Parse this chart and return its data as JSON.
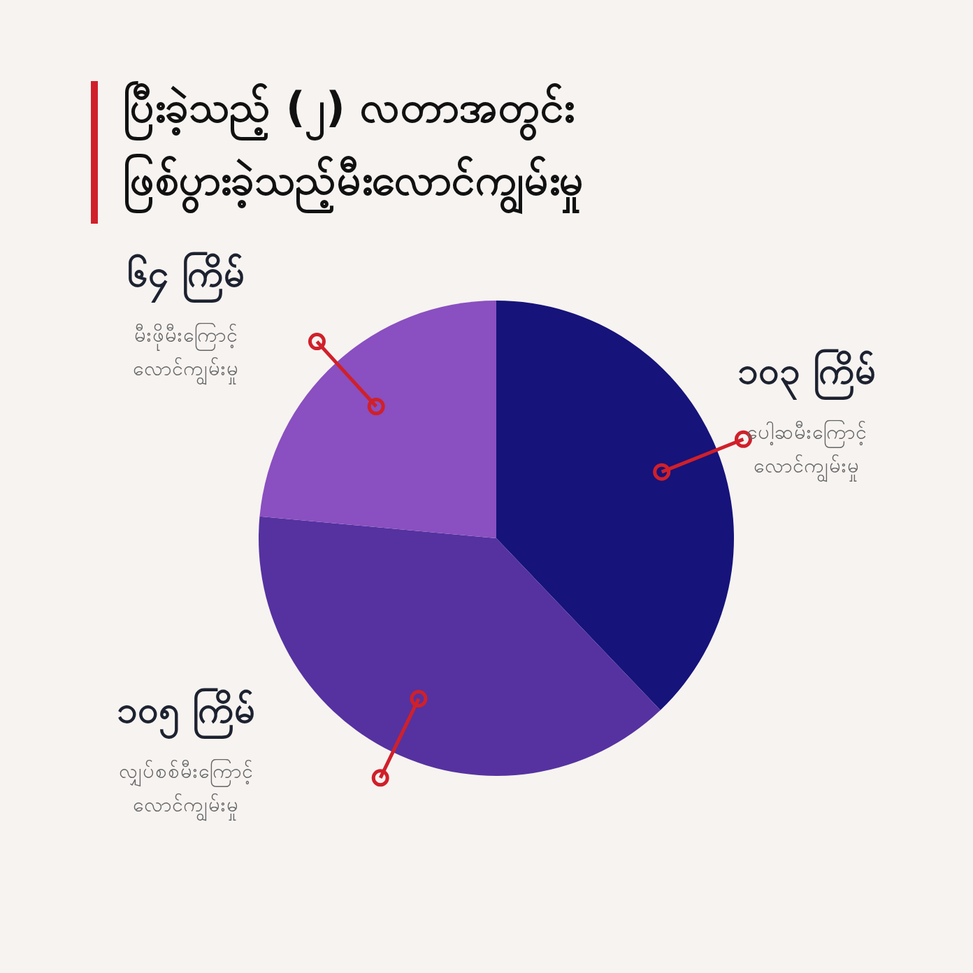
{
  "chart_data": {
    "type": "pie",
    "title": "ပြီးခဲ့သည့် (၂) လတာအတွင်း ဖြစ်ပွားခဲ့သည့်မီးလောင်ကျွမ်းမှု",
    "categories": [
      "ပေါ့ဆမီးကြောင့် လောင်ကျွမ်းမှု",
      "လျှပ်စစ်မီးကြောင့် လောင်ကျွမ်းမှု",
      "မီးဖိုမီးကြောင့် လောင်ကျွမ်းမှု"
    ],
    "values": [
      103,
      105,
      64
    ],
    "value_labels": [
      "၁၀၃ ကြိမ်",
      "၁၀၅ ကြိမ်",
      "၆၄ ကြိမ်"
    ],
    "colors": [
      "#16137a",
      "#5532a0",
      "#8a4fc0"
    ]
  }
}
